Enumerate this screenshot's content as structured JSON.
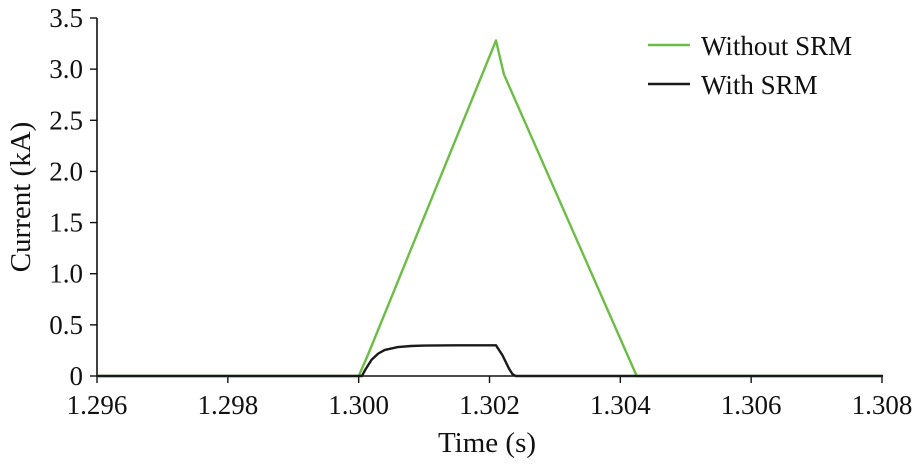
{
  "chart_data": {
    "type": "line",
    "xlabel": "Time (s)",
    "ylabel": "Current (kA)",
    "xlim": [
      1.296,
      1.308
    ],
    "ylim": [
      0,
      3.5
    ],
    "x_ticks": [
      1.296,
      1.298,
      1.3,
      1.302,
      1.304,
      1.306,
      1.308
    ],
    "x_tick_labels": [
      "1.296",
      "1.298",
      "1.300",
      "1.302",
      "1.304",
      "1.306",
      "1.308"
    ],
    "y_ticks": [
      0,
      0.5,
      1.0,
      1.5,
      2.0,
      2.5,
      3.0,
      3.5
    ],
    "y_tick_labels": [
      "0",
      "0.5",
      "1.0",
      "1.5",
      "2.0",
      "2.5",
      "3.0",
      "3.5"
    ],
    "grid": false,
    "legend_position": "top-right",
    "series": [
      {
        "name": "Without SRM",
        "color": "#6cbd45",
        "x": [
          1.296,
          1.3,
          1.30015,
          1.3021,
          1.30222,
          1.30425,
          1.308
        ],
        "y": [
          0,
          0,
          0.22,
          3.28,
          2.95,
          0,
          0
        ]
      },
      {
        "name": "With SRM",
        "color": "#1a1a1a",
        "x": [
          1.296,
          1.30005,
          1.3001,
          1.3002,
          1.3003,
          1.3004,
          1.3006,
          1.3008,
          1.301,
          1.3015,
          1.302,
          1.3021,
          1.3022,
          1.3023,
          1.30235,
          1.3024,
          1.308
        ],
        "y": [
          0,
          0,
          0.06,
          0.16,
          0.22,
          0.255,
          0.283,
          0.293,
          0.297,
          0.3,
          0.3,
          0.3,
          0.2,
          0.07,
          0.02,
          0,
          0
        ]
      }
    ]
  }
}
